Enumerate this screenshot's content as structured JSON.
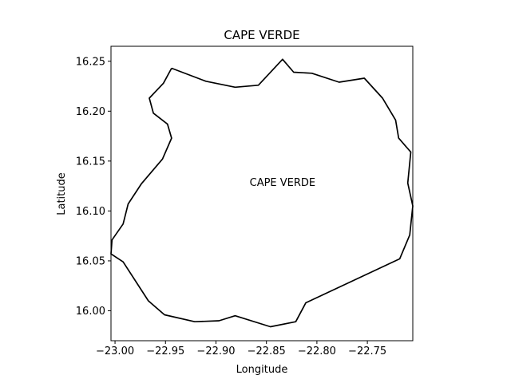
{
  "title": "CAPE VERDE",
  "xlabel": "Longitude",
  "ylabel": "Latitude",
  "annotation": {
    "text": "CAPE VERDE",
    "lon": -22.834,
    "lat": 16.129
  },
  "xlim": [
    -23.004,
    -22.705
  ],
  "ylim": [
    15.97,
    16.265
  ],
  "xticks": [
    -23.0,
    -22.95,
    -22.9,
    -22.85,
    -22.8,
    -22.75
  ],
  "xtick_labels": [
    "−23.00",
    "−22.95",
    "−22.90",
    "−22.85",
    "−22.80",
    "−22.75"
  ],
  "yticks": [
    16.0,
    16.05,
    16.1,
    16.15,
    16.2,
    16.25
  ],
  "ytick_labels": [
    "16.00",
    "16.05",
    "16.10",
    "16.15",
    "16.20",
    "16.25"
  ],
  "line_color": "#000000",
  "outline": [
    [
      -22.944,
      16.243
    ],
    [
      -22.91,
      16.23
    ],
    [
      -22.881,
      16.224
    ],
    [
      -22.858,
      16.226
    ],
    [
      -22.834,
      16.252
    ],
    [
      -22.823,
      16.239
    ],
    [
      -22.805,
      16.238
    ],
    [
      -22.778,
      16.229
    ],
    [
      -22.753,
      16.233
    ],
    [
      -22.735,
      16.213
    ],
    [
      -22.722,
      16.191
    ],
    [
      -22.719,
      16.173
    ],
    [
      -22.707,
      16.159
    ],
    [
      -22.71,
      16.128
    ],
    [
      -22.705,
      16.105
    ],
    [
      -22.708,
      16.076
    ],
    [
      -22.718,
      16.052
    ],
    [
      -22.811,
      16.008
    ],
    [
      -22.821,
      15.989
    ],
    [
      -22.846,
      15.984
    ],
    [
      -22.881,
      15.995
    ],
    [
      -22.897,
      15.99
    ],
    [
      -22.921,
      15.989
    ],
    [
      -22.951,
      15.996
    ],
    [
      -22.967,
      16.01
    ],
    [
      -22.992,
      16.049
    ],
    [
      -23.004,
      16.057
    ],
    [
      -23.003,
      16.071
    ],
    [
      -22.992,
      16.087
    ],
    [
      -22.987,
      16.107
    ],
    [
      -22.974,
      16.127
    ],
    [
      -22.953,
      16.152
    ],
    [
      -22.944,
      16.173
    ],
    [
      -22.948,
      16.187
    ],
    [
      -22.962,
      16.198
    ],
    [
      -22.966,
      16.213
    ],
    [
      -22.952,
      16.228
    ],
    [
      -22.944,
      16.243
    ]
  ]
}
